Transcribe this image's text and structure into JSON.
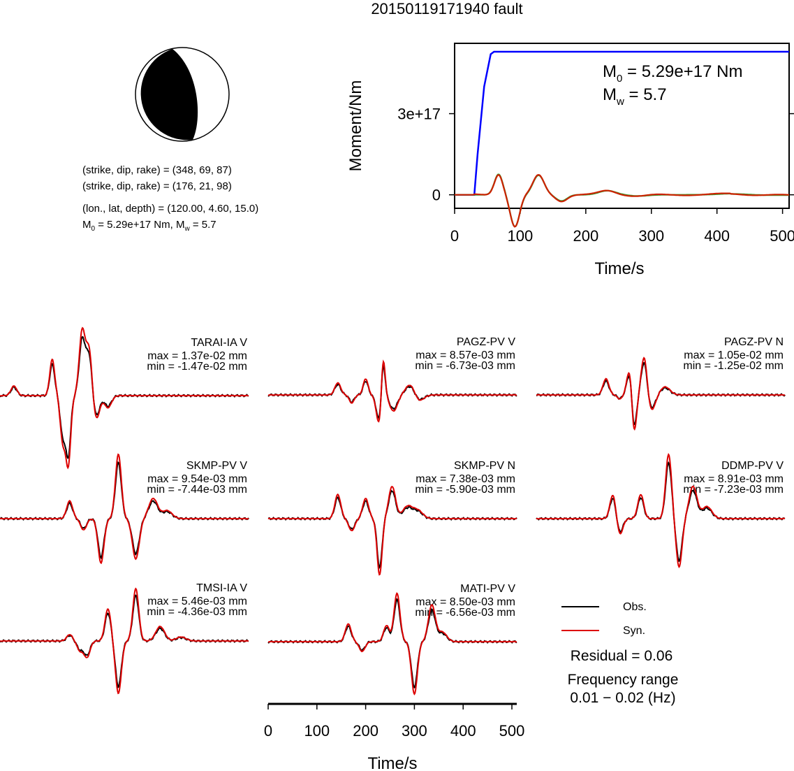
{
  "title": "20150119171940 fault",
  "mechanism": {
    "nodal_plane_1": "(strike, dip, rake) = (348, 69, 87)",
    "nodal_plane_2": "(strike, dip, rake) = (176, 21, 98)",
    "location": "(lon., lat, depth) = (120.00, 4.60, 15.0)",
    "moment_prefix": "M",
    "moment_sub": "0",
    "moment_value": " = 5.29e+17 Nm, M",
    "mw_sub": "w",
    "mw_value": " = 5.7"
  },
  "stf_plot": {
    "ylabel": "Moment/Nm",
    "xlabel": "Time/s",
    "x_ticks": [
      "0",
      "100",
      "200",
      "300",
      "400",
      "500"
    ],
    "y_ticks": [
      "0",
      "3e+17"
    ],
    "m0_prefix": "M",
    "m0_sub": "0",
    "m0_value": " = 5.29e+17 Nm",
    "mw_prefix": "M",
    "mw_sub": "w",
    "mw_value": " = 5.7",
    "colors": {
      "moment": "#0000ff",
      "obs": "#2ca02c",
      "syn": "#cc2200"
    }
  },
  "waveforms": {
    "xlabel": "Time/s",
    "x_ticks": [
      "0",
      "100",
      "200",
      "300",
      "400",
      "500"
    ],
    "traces": [
      {
        "station": "TARAI-IA V",
        "max": "max = 1.37e-02 mm",
        "min": "min = -1.47e-02 mm"
      },
      {
        "station": "PAGZ-PV V",
        "max": "max = 8.57e-03 mm",
        "min": "min = -6.73e-03 mm"
      },
      {
        "station": "PAGZ-PV N",
        "max": "max = 1.05e-02 mm",
        "min": "min = -1.25e-02 mm"
      },
      {
        "station": "SKMP-PV V",
        "max": "max = 9.54e-03 mm",
        "min": "min = -7.44e-03 mm"
      },
      {
        "station": "SKMP-PV N",
        "max": "max = 7.38e-03 mm",
        "min": "min = -5.90e-03 mm"
      },
      {
        "station": "DDMP-PV V",
        "max": "max = 8.91e-03 mm",
        "min": "min = -7.23e-03 mm"
      },
      {
        "station": "TMSI-IA V",
        "max": "max = 5.46e-03 mm",
        "min": "min = -4.36e-03 mm"
      },
      {
        "station": "MATI-PV V",
        "max": "max = 8.50e-03 mm",
        "min": "min = -6.56e-03 mm"
      }
    ]
  },
  "legend": {
    "obs_label": "Obs.",
    "syn_label": "Syn.",
    "obs_color": "#000000",
    "syn_color": "#dd0000",
    "residual": "Residual = 0.06",
    "freq_title": "Frequency range",
    "freq_value": "0.01 − 0.02 (Hz)"
  },
  "chart_data": [
    {
      "type": "line",
      "ylabel": "Moment/Nm",
      "xlabel": "Time/s",
      "xlim": [
        0,
        510
      ],
      "ylim": [
        -5e+16,
        5.6e+17
      ],
      "series": [
        {
          "x": [
            0,
            30,
            35,
            45,
            55,
            60,
            510
          ],
          "y": [
            0,
            0,
            1.5e+17,
            4e+17,
            5.2e+17,
            5.29e+17,
            5.29e+17
          ]
        }
      ]
    },
    {
      "type": "line",
      "xlabel": "Time/s",
      "xlim": [
        0,
        510
      ],
      "series": [
        {
          "name": "Obs.",
          "trace_count": 8
        },
        {
          "name": "Syn.",
          "trace_count": 8
        }
      ]
    }
  ]
}
